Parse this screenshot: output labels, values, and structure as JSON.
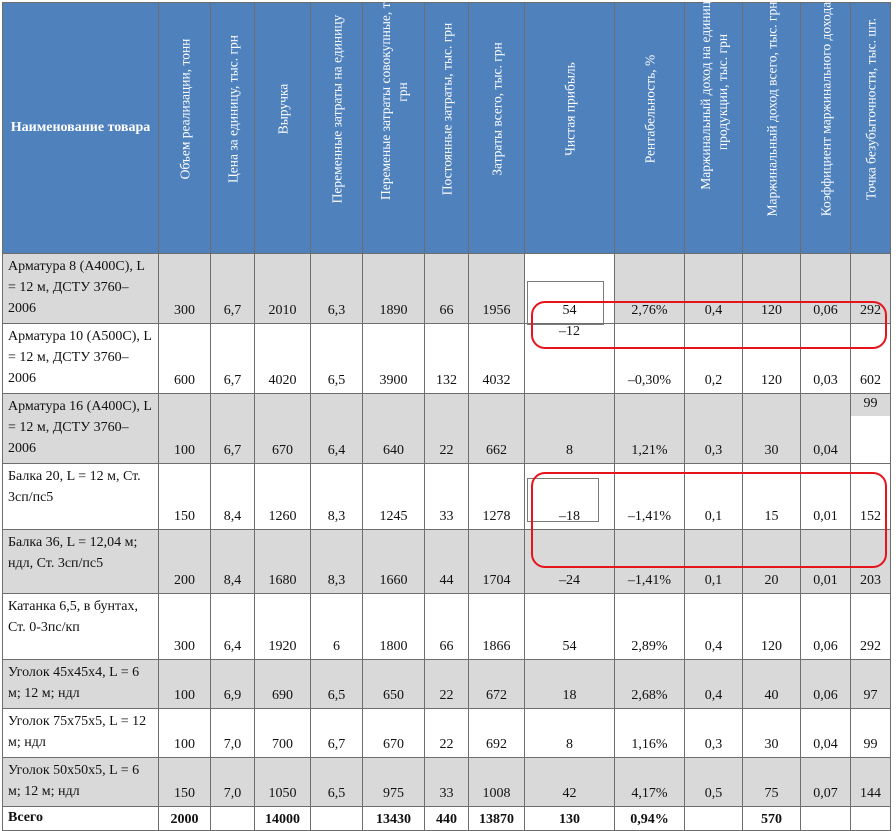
{
  "headers": {
    "name": "Наименование товара",
    "c1": "Объем реализации, тонн",
    "c2": "Цена за единицу, тыс. грн",
    "c3": "Выручка",
    "c4": "Переменные затраты на единицу",
    "c5": "Переменые затраты совокупные, тыс. грн",
    "c6": "Постоянные затраты, тыс. грн",
    "c7": "Затраты всего, тыс. грн",
    "c8": "Чистая прибыль",
    "c9": "Рентабельность, %",
    "c10": "Маржинальный доход на единицу продукции, тыс. грн",
    "c11": "Маржинальный доход всего, тыс. грн",
    "c12": "Коэффициент маржинального дохода",
    "c13": "Точка безубыточности, тыс. шт."
  },
  "rows": [
    {
      "name": "Арматура 8 (А400С), L = 12 м, ДСТУ 3760–2006",
      "c1": "300",
      "c2": "6,7",
      "c3": "2010",
      "c4": "6,3",
      "c5": "1890",
      "c6": "66",
      "c7": "1956",
      "c8": "54",
      "c9": "2,76%",
      "c10": "0,4",
      "c11": "120",
      "c12": "0,06",
      "c13": "292"
    },
    {
      "name": "Арматура 10 (А500С), L = 12 м, ДСТУ 3760–2006",
      "c1": "600",
      "c2": "6,7",
      "c3": "4020",
      "c4": "6,5",
      "c5": "3900",
      "c6": "132",
      "c7": "4032",
      "c8": "–12",
      "c9": "–0,30%",
      "c10": "0,2",
      "c11": "120",
      "c12": "0,03",
      "c13": "602"
    },
    {
      "name": "Арматура 16 (А400С), L = 12 м, ДСТУ 3760–2006",
      "c1": "100",
      "c2": "6,7",
      "c3": "670",
      "c4": "6,4",
      "c5": "640",
      "c6": "22",
      "c7": "662",
      "c8": "8",
      "c9": "1,21%",
      "c10": "0,3",
      "c11": "30",
      "c12": "0,04",
      "c13": "99"
    },
    {
      "name": "Балка 20, L = 12 м, Ст. 3сп/пс5",
      "c1": "150",
      "c2": "8,4",
      "c3": "1260",
      "c4": "8,3",
      "c5": "1245",
      "c6": "33",
      "c7": "1278",
      "c8": "–18",
      "c9": "–1,41%",
      "c10": "0,1",
      "c11": "15",
      "c12": "0,01",
      "c13": "152"
    },
    {
      "name": "Балка 36, L = 12,04 м; ндл, Ст. 3сп/пс5",
      "c1": "200",
      "c2": "8,4",
      "c3": "1680",
      "c4": "8,3",
      "c5": "1660",
      "c6": "44",
      "c7": "1704",
      "c8": "–24",
      "c9": "–1,41%",
      "c10": "0,1",
      "c11": "20",
      "c12": "0,01",
      "c13": "203"
    },
    {
      "name": "Катанка 6,5, в бунтах, Ст. 0-3пс/кп",
      "c1": "300",
      "c2": "6,4",
      "c3": "1920",
      "c4": "6",
      "c5": "1800",
      "c6": "66",
      "c7": "1866",
      "c8": "54",
      "c9": "2,89%",
      "c10": "0,4",
      "c11": "120",
      "c12": "0,06",
      "c13": "292"
    },
    {
      "name": "Уголок 45х45х4, L = 6 м; 12 м; ндл",
      "c1": "100",
      "c2": "6,9",
      "c3": "690",
      "c4": "6,5",
      "c5": "650",
      "c6": "22",
      "c7": "672",
      "c8": "18",
      "c9": "2,68%",
      "c10": "0,4",
      "c11": "40",
      "c12": "0,06",
      "c13": "97"
    },
    {
      "name": "Уголок 75х75х5, L = 12 м; ндл",
      "c1": "100",
      "c2": "7,0",
      "c3": "700",
      "c4": "6,7",
      "c5": "670",
      "c6": "22",
      "c7": "692",
      "c8": "8",
      "c9": "1,16%",
      "c10": "0,3",
      "c11": "30",
      "c12": "0,04",
      "c13": "99"
    },
    {
      "name": "Уголок 50х50х5, L = 6 м; 12 м; ндл",
      "c1": "150",
      "c2": "7,0",
      "c3": "1050",
      "c4": "6,5",
      "c5": "975",
      "c6": "33",
      "c7": "1008",
      "c8": "42",
      "c9": "4,17%",
      "c10": "0,5",
      "c11": "75",
      "c12": "0,07",
      "c13": "144"
    }
  ],
  "total": {
    "label": "Всего",
    "c1": "2000",
    "c3": "14000",
    "c5": "13430",
    "c6": "440",
    "c7": "13870",
    "c8": "130",
    "c9": "0,94%",
    "c11": "570"
  }
}
